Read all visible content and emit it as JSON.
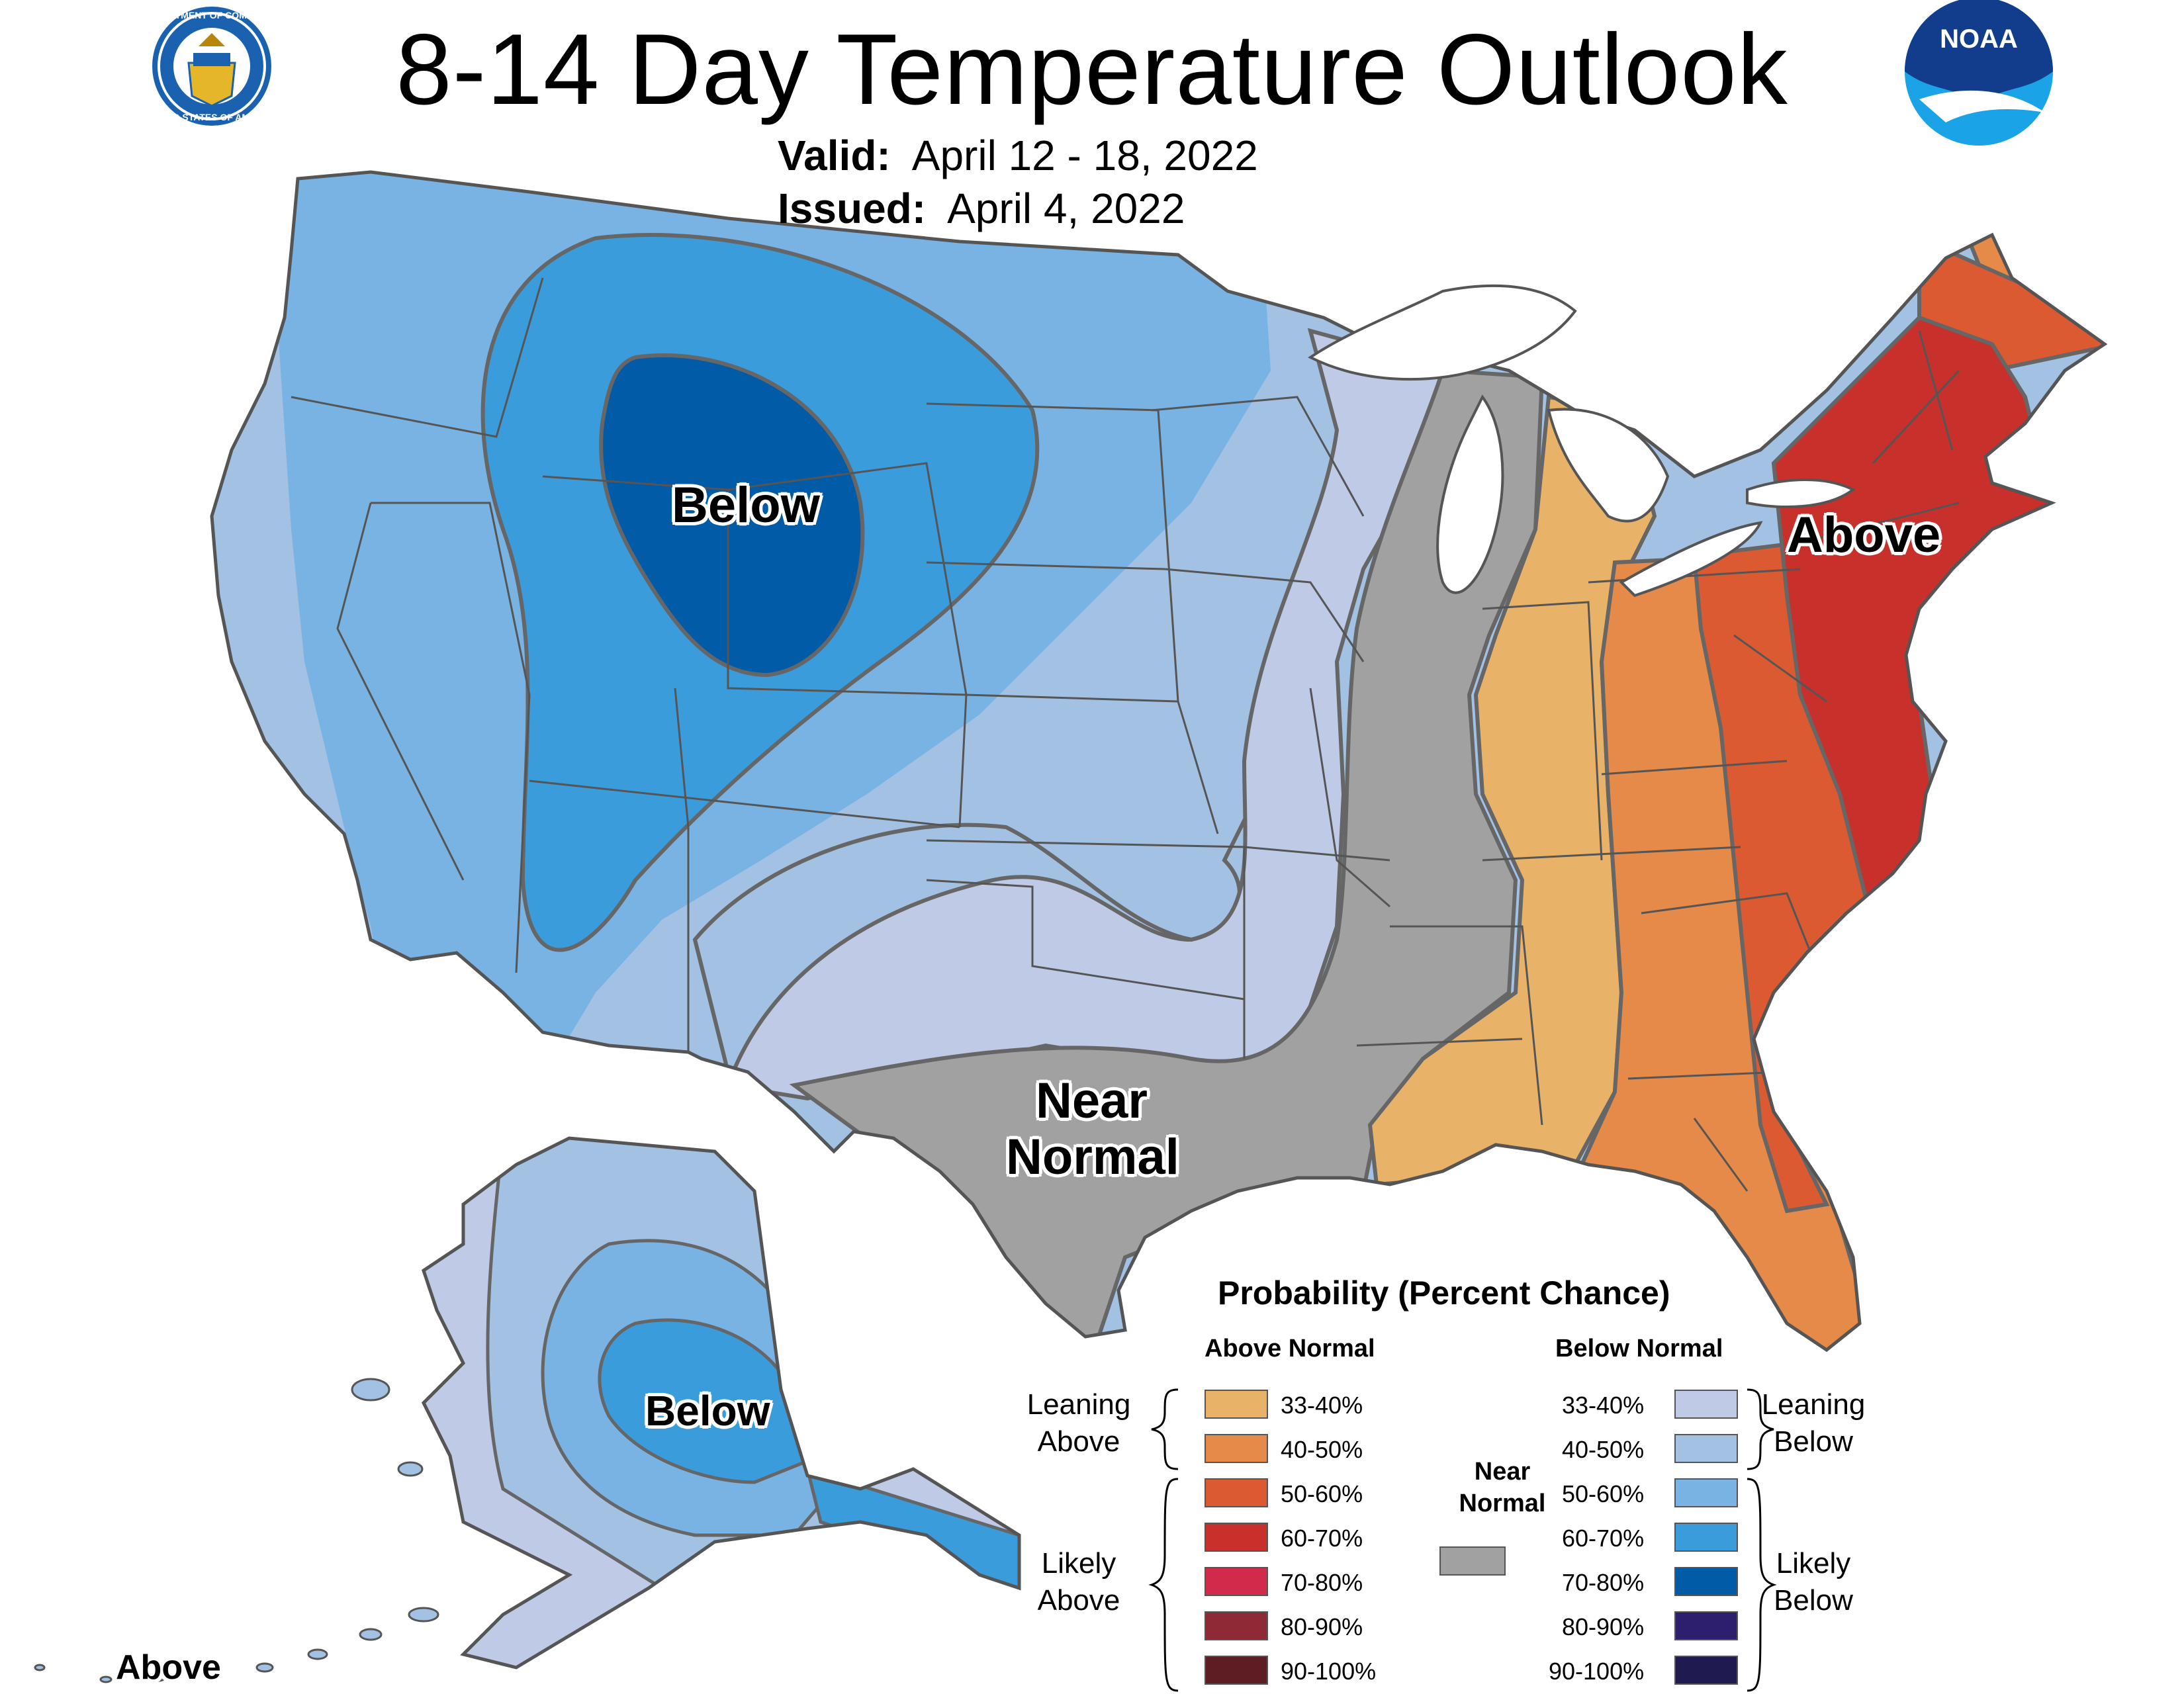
{
  "title": "8-14 Day Temperature Outlook",
  "valid_label": "Valid:",
  "valid_value": "April 12 - 18, 2022",
  "issued_label": "Issued:",
  "issued_value": "April 4, 2022",
  "logos": {
    "commerce_seal_text_top": "DEPARTMENT OF COMMERCE",
    "commerce_seal_text_bottom": "UNITED STATES OF AMERICA",
    "noaa_text": "NOAA"
  },
  "region_labels": {
    "below_west": "Below",
    "above_east": "Above",
    "near_normal_1": "Near",
    "near_normal_2": "Normal",
    "below_alaska": "Below",
    "above_hawaii": "Above"
  },
  "colors": {
    "lean_above_33_40": "#E9B269",
    "above_40_50": "#E58A48",
    "above_50_60": "#DB5A32",
    "above_60_70": "#C8302C",
    "above_70_80": "#D12A4A",
    "above_80_90": "#8E2A35",
    "above_90_100": "#5E1D22",
    "near_normal": "#A1A1A1",
    "below_33_40": "#BFCAE6",
    "below_40_50": "#A3C1E2",
    "below_50_60": "#79B3E4",
    "below_60_70": "#3B9CDC",
    "below_70_80": "#015BA6",
    "below_80_90": "#2E1F6E",
    "below_90_100": "#1F1A4F",
    "outline": "#555555",
    "water": "#ffffff"
  },
  "legend": {
    "title": "Probability (Percent Chance)",
    "above_header": "Above Normal",
    "below_header": "Below Normal",
    "near_header_1": "Near",
    "near_header_2": "Normal",
    "leaning_above_1": "Leaning",
    "leaning_above_2": "Above",
    "likely_above_1": "Likely",
    "likely_above_2": "Above",
    "leaning_below_1": "Leaning",
    "leaning_below_2": "Below",
    "likely_below_1": "Likely",
    "likely_below_2": "Below",
    "above_ranges": [
      "33-40%",
      "40-50%",
      "50-60%",
      "60-70%",
      "70-80%",
      "80-90%",
      "90-100%"
    ],
    "below_ranges": [
      "33-40%",
      "40-50%",
      "50-60%",
      "60-70%",
      "70-80%",
      "80-90%",
      "90-100%"
    ]
  }
}
